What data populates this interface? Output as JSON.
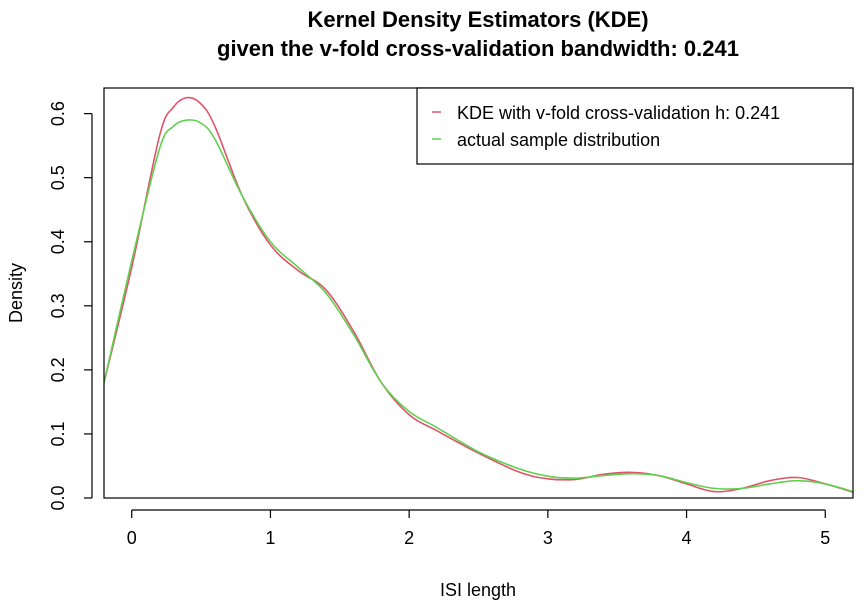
{
  "chart_data": {
    "type": "line",
    "title": "Kernel Density Estimators (KDE)",
    "subtitle": "given the v-fold cross-validation bandwidth: 0.241",
    "xlabel": "ISI length",
    "ylabel": "Density",
    "xlim": [
      -0.2,
      5.2
    ],
    "ylim": [
      0.0,
      0.64
    ],
    "x_ticks": [
      0,
      1,
      2,
      3,
      4,
      5
    ],
    "y_ticks": [
      0.0,
      0.1,
      0.2,
      0.3,
      0.4,
      0.5,
      0.6
    ],
    "x_tick_labels": [
      "0",
      "1",
      "2",
      "3",
      "4",
      "5"
    ],
    "y_tick_labels": [
      "0.0",
      "0.1",
      "0.2",
      "0.3",
      "0.4",
      "0.5",
      "0.6"
    ],
    "grid": false,
    "legend_position": "top-right",
    "series": [
      {
        "name": "KDE with v-fold cross-validation h: 0.241",
        "color": "#DF536B",
        "x": [
          -0.2,
          0.0,
          0.2,
          0.3,
          0.4,
          0.5,
          0.6,
          0.8,
          1.0,
          1.2,
          1.4,
          1.6,
          1.8,
          2.0,
          2.2,
          2.5,
          2.8,
          3.0,
          3.2,
          3.4,
          3.6,
          3.8,
          4.0,
          4.2,
          4.4,
          4.6,
          4.8,
          5.0,
          5.2
        ],
        "y": [
          0.18,
          0.36,
          0.565,
          0.61,
          0.625,
          0.615,
          0.58,
          0.47,
          0.395,
          0.355,
          0.325,
          0.26,
          0.18,
          0.13,
          0.105,
          0.07,
          0.04,
          0.03,
          0.029,
          0.037,
          0.04,
          0.035,
          0.022,
          0.01,
          0.015,
          0.027,
          0.032,
          0.022,
          0.009
        ]
      },
      {
        "name": "actual sample distribution",
        "color": "#61D04F",
        "x": [
          -0.2,
          0.0,
          0.2,
          0.3,
          0.4,
          0.5,
          0.6,
          0.8,
          1.0,
          1.2,
          1.4,
          1.6,
          1.8,
          2.0,
          2.2,
          2.5,
          2.8,
          3.0,
          3.2,
          3.4,
          3.6,
          3.8,
          4.0,
          4.2,
          4.4,
          4.6,
          4.8,
          5.0,
          5.2
        ],
        "y": [
          0.18,
          0.37,
          0.545,
          0.58,
          0.59,
          0.585,
          0.56,
          0.47,
          0.4,
          0.36,
          0.32,
          0.255,
          0.18,
          0.135,
          0.11,
          0.072,
          0.045,
          0.034,
          0.031,
          0.035,
          0.038,
          0.035,
          0.024,
          0.015,
          0.015,
          0.022,
          0.027,
          0.022,
          0.01
        ]
      }
    ]
  }
}
